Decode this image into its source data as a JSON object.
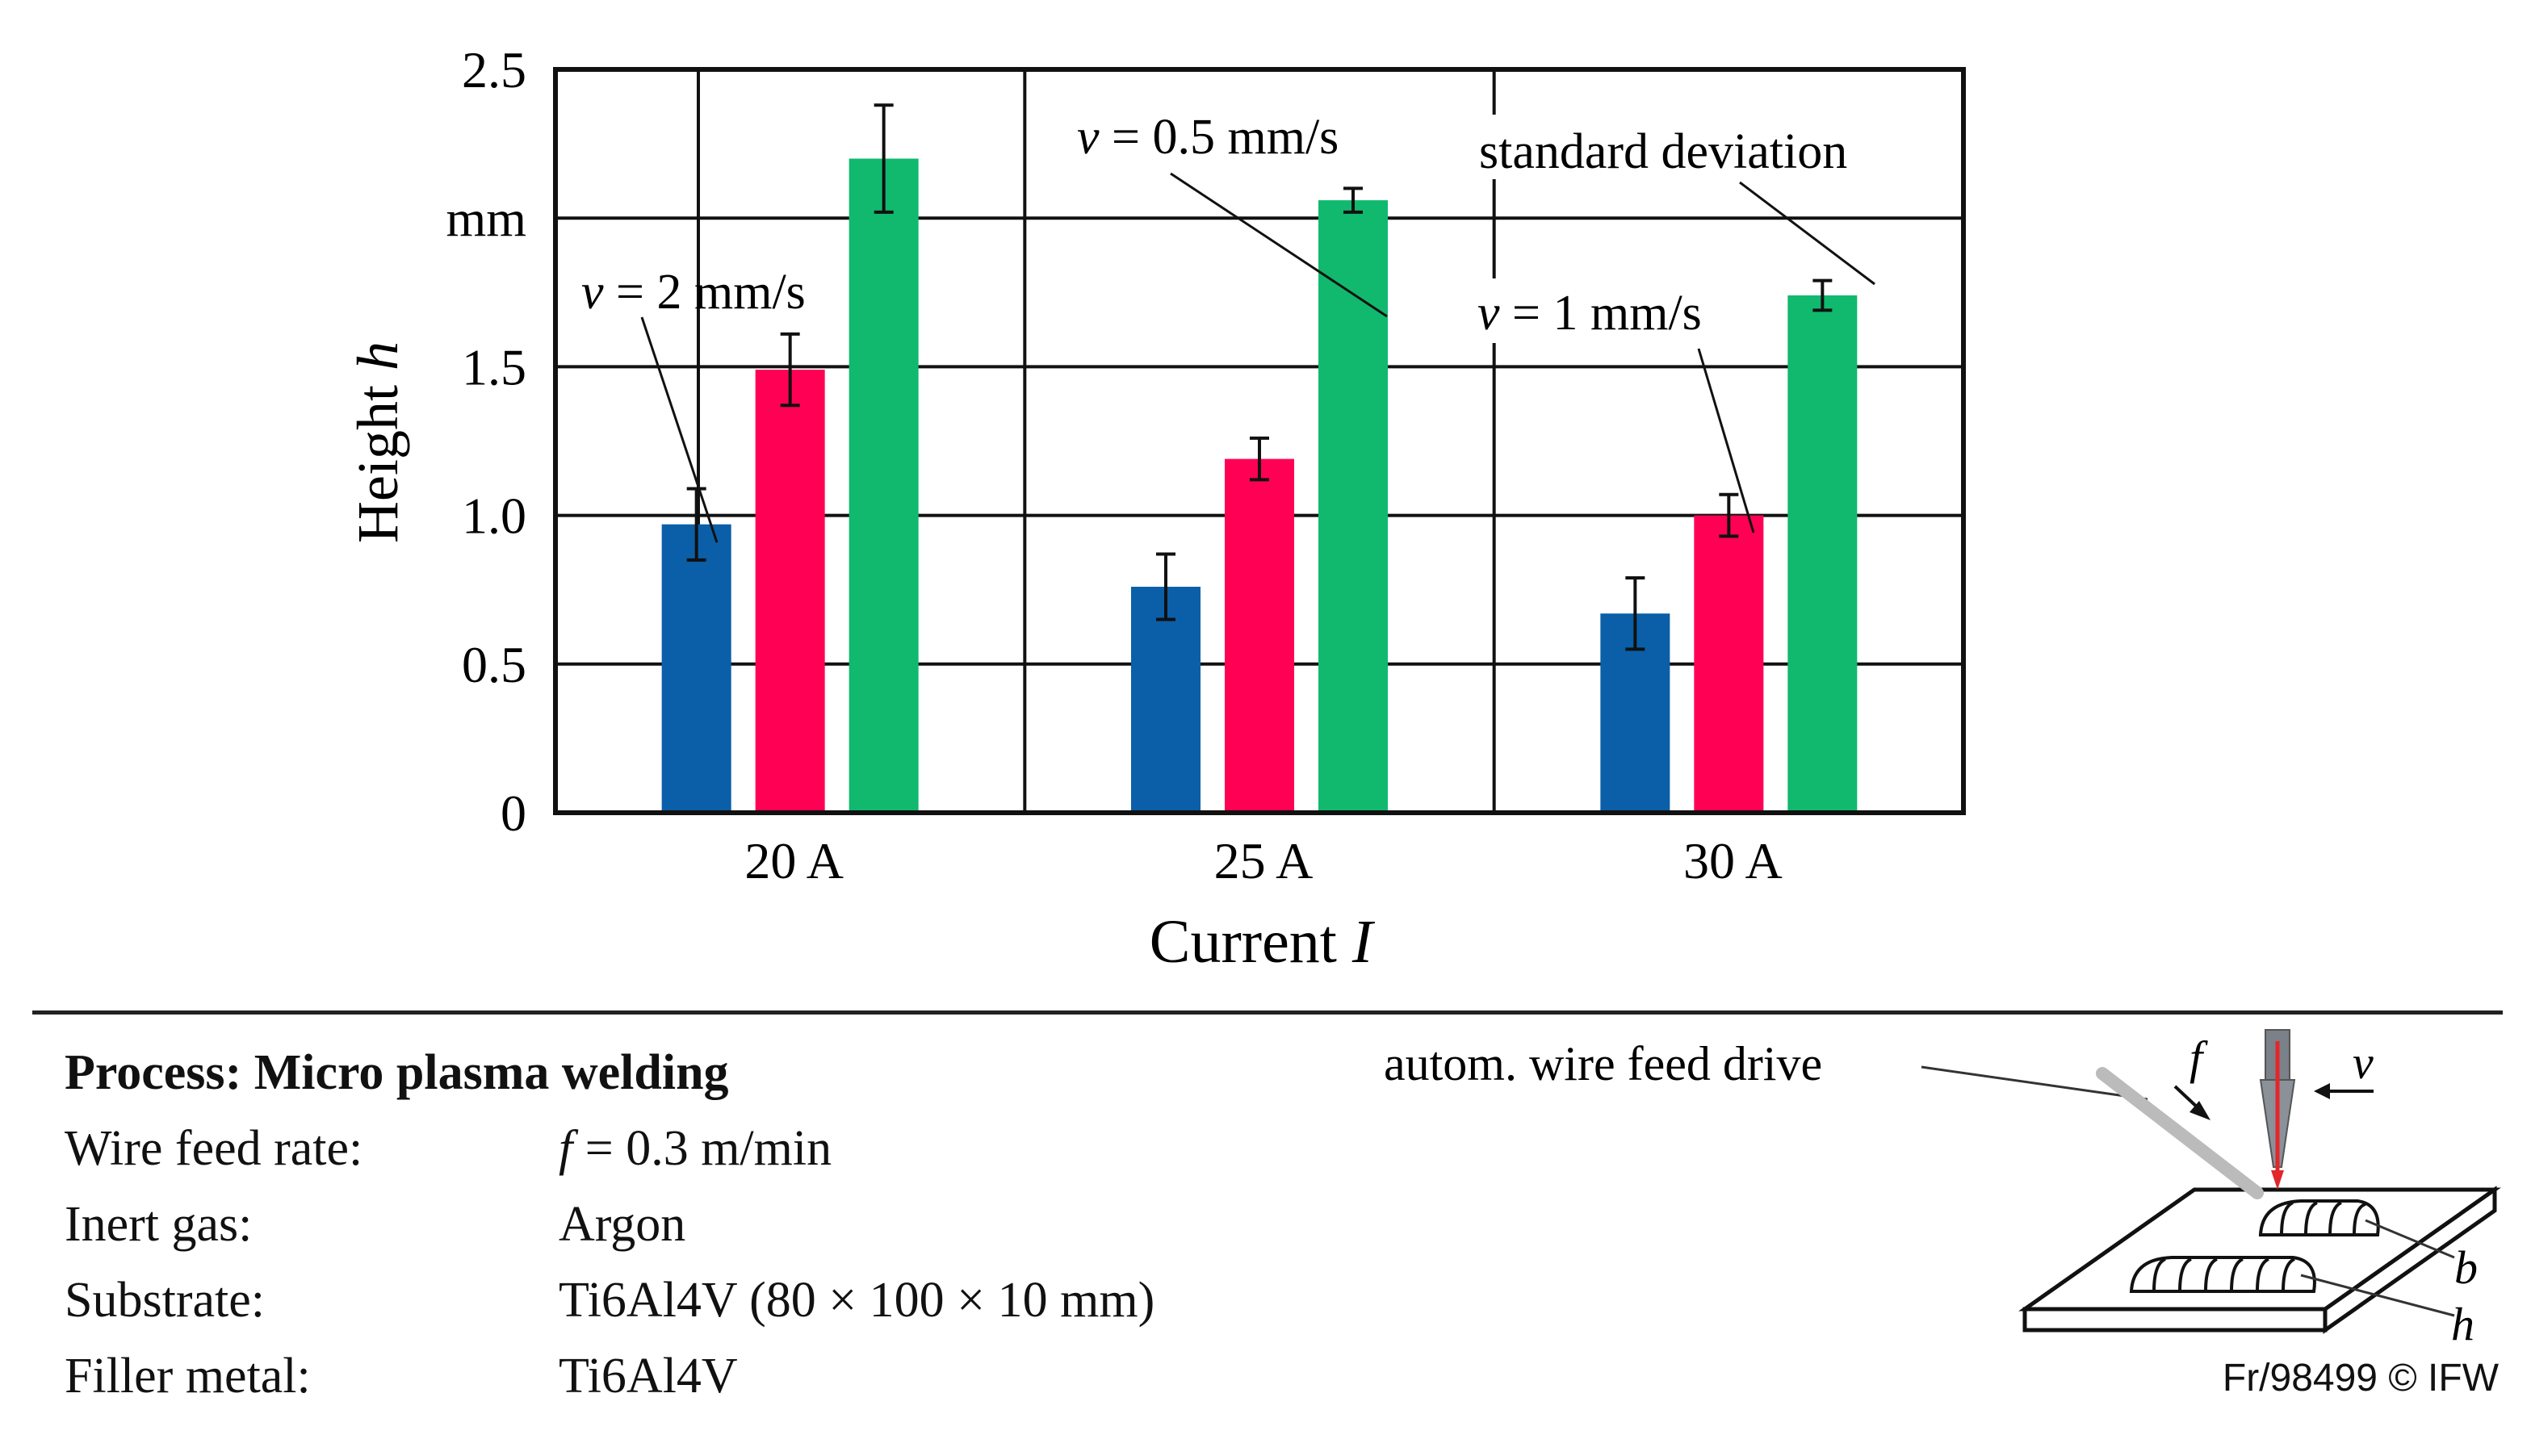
{
  "chart_data": {
    "type": "bar",
    "categories": [
      "20 A",
      "25 A",
      "30 A"
    ],
    "series": [
      {
        "name": "v = 2 mm/s",
        "color": "#0a5fa8",
        "values": [
          0.97,
          0.76,
          0.67
        ],
        "std": [
          0.12,
          0.11,
          0.12
        ]
      },
      {
        "name": "v = 1 mm/s",
        "color": "#ff0055",
        "values": [
          1.49,
          1.19,
          1.0
        ],
        "std": [
          0.12,
          0.07,
          0.07
        ]
      },
      {
        "name": "v = 0.5 mm/s",
        "color": "#10b96e",
        "values": [
          2.2,
          2.06,
          1.74
        ],
        "std": [
          0.18,
          0.04,
          0.05
        ]
      }
    ],
    "ylim": [
      0,
      2.5
    ],
    "yticks": [
      {
        "value": 0,
        "label": "0"
      },
      {
        "value": 0.5,
        "label": "0.5"
      },
      {
        "value": 1.0,
        "label": "1.0"
      },
      {
        "value": 1.5,
        "label": "1.5"
      },
      {
        "value": 2.0,
        "label": "mm"
      },
      {
        "value": 2.5,
        "label": "2.5"
      }
    ],
    "ylabel": {
      "text": "Height ",
      "var": "h"
    },
    "xlabel": {
      "text": "Current ",
      "var": "I"
    },
    "grid": true,
    "annotations": {
      "v2": {
        "var": "v",
        "rest": " = 2 mm/s"
      },
      "v05": {
        "var": "v",
        "rest": " = 0.5 mm/s"
      },
      "v1": {
        "var": "v",
        "rest": " = 1 mm/s"
      },
      "std": {
        "text": "standard deviation"
      }
    }
  },
  "info": {
    "heading": "Process: Micro plasma welding",
    "rows": [
      {
        "label": "Wire feed rate:",
        "var": "f",
        "value": " = 0.3 m/min"
      },
      {
        "label": "Inert gas:",
        "var": "",
        "value": "Argon"
      },
      {
        "label": "Substrate:",
        "var": "",
        "value": "Ti6Al4V (80 × 100 × 10 mm)"
      },
      {
        "label": "Filler metal:",
        "var": "",
        "value": "Ti6Al4V"
      }
    ]
  },
  "sketch": {
    "label_drive": "autom. wire feed drive",
    "label_f": "f",
    "label_v": "v",
    "label_b": "b",
    "label_h": "h"
  },
  "credit": "Fr/98499 © IFW"
}
